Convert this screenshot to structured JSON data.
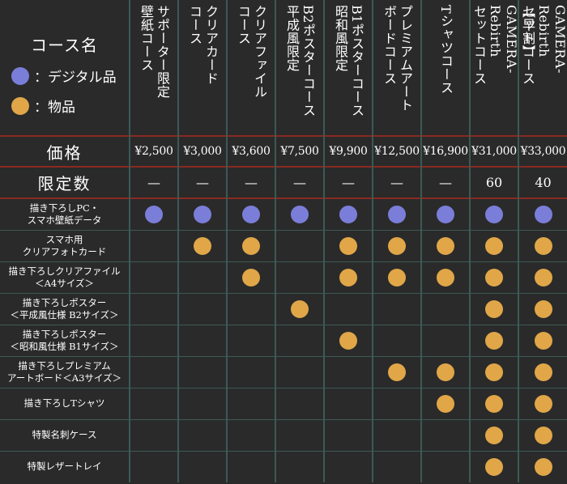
{
  "colors": {
    "background": "#2a2a2a",
    "grid": "#3c5a55",
    "accent_rule": "#8a2a22",
    "digital_dot": "#7a7ed8",
    "goods_dot": "#e0a648",
    "text": "#ffffff"
  },
  "legend": {
    "title": "コース名",
    "digital_label": "：デジタル品",
    "goods_label": "：物品"
  },
  "courses": [
    {
      "name": "サポーター限定\n壁紙コース",
      "price": "¥2,500",
      "limit": "—"
    },
    {
      "name": "クリアカード\nコース",
      "price": "¥3,000",
      "limit": "—"
    },
    {
      "name": "クリアファイル\nコース",
      "price": "¥3,600",
      "limit": "—"
    },
    {
      "name": "B2ポスターコース\n平成風限定",
      "price": "¥7,500",
      "limit": "—"
    },
    {
      "name": "B1ポスターコース\n昭和風限定",
      "price": "¥9,900",
      "limit": "—"
    },
    {
      "name": "プレミアムアート\nボードコース",
      "price": "¥12,500",
      "limit": "—"
    },
    {
      "name": "Tシャツコース",
      "price": "¥16,900",
      "limit": "—"
    },
    {
      "name": "【早割】\nGAMERA-\nRebirth\nセットコース",
      "price": "¥31,000",
      "limit": "60"
    },
    {
      "name": "GAMERA-\nRebirth\nセットコース",
      "price": "¥33,000",
      "limit": "40"
    }
  ],
  "row_labels": {
    "price": "価格",
    "limit": "限定数"
  },
  "items": [
    {
      "label": "描き下ろしPC・\nスマホ壁紙データ",
      "marks": [
        "digital",
        "digital",
        "digital",
        "digital",
        "digital",
        "digital",
        "digital",
        "digital",
        "digital"
      ]
    },
    {
      "label": "スマホ用\nクリアフォトカード",
      "marks": [
        "",
        "goods",
        "goods",
        "",
        "goods",
        "goods",
        "goods",
        "goods",
        "goods"
      ]
    },
    {
      "label": "描き下ろしクリアファイル\n＜A4サイズ＞",
      "marks": [
        "",
        "",
        "goods",
        "",
        "goods",
        "goods",
        "goods",
        "goods",
        "goods"
      ]
    },
    {
      "label": "描き下ろしポスター\n＜平成風仕様 B2サイズ＞",
      "marks": [
        "",
        "",
        "",
        "goods",
        "",
        "",
        "",
        "goods",
        "goods"
      ]
    },
    {
      "label": "描き下ろしポスター\n＜昭和風仕様 B1サイズ＞",
      "marks": [
        "",
        "",
        "",
        "",
        "goods",
        "",
        "",
        "goods",
        "goods"
      ]
    },
    {
      "label": "描き下ろしプレミアム\nアートボード＜A3サイズ＞",
      "marks": [
        "",
        "",
        "",
        "",
        "",
        "goods",
        "goods",
        "goods",
        "goods"
      ]
    },
    {
      "label": "描き下ろしTシャツ",
      "marks": [
        "",
        "",
        "",
        "",
        "",
        "",
        "goods",
        "goods",
        "goods"
      ]
    },
    {
      "label": "特製名刺ケース",
      "marks": [
        "",
        "",
        "",
        "",
        "",
        "",
        "",
        "goods",
        "goods"
      ]
    },
    {
      "label": "特製レザートレイ",
      "marks": [
        "",
        "",
        "",
        "",
        "",
        "",
        "",
        "goods",
        "goods"
      ]
    }
  ]
}
